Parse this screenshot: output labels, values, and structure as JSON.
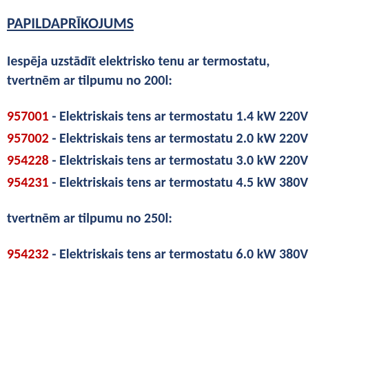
{
  "title": "PAPILDAPRĪKOJUMS",
  "intro": "Iespēja uzstādīt elektrisko tenu ar termostatu,",
  "subsection1": "tvertnēm ar tilpumu no 200l:",
  "subsection2": "tvertnēm ar tilpumu no 250l:",
  "items200": [
    {
      "code": "957001",
      "desc": " - Elektriskais tens ar termostatu 1.4 kW 220V"
    },
    {
      "code": "957002",
      "desc": " - Elektriskais tens ar termostatu 2.0 kW 220V"
    },
    {
      "code": "954228",
      "desc": " - Elektriskais tens ar termostatu 3.0 kW 220V"
    },
    {
      "code": "954231",
      "desc": " - Elektriskais tens ar termostatu 4.5 kW 380V"
    }
  ],
  "items250": [
    {
      "code": "954232",
      "desc": " - Elektriskais tens ar termostatu 6.0 kW 380V"
    }
  ],
  "colors": {
    "code_color": "#c00000",
    "text_color": "#1f3864",
    "background": "#ffffff"
  },
  "typography": {
    "title_fontsize": 22,
    "body_fontsize": 20,
    "font_weight": "bold",
    "font_family": "Calibri"
  }
}
